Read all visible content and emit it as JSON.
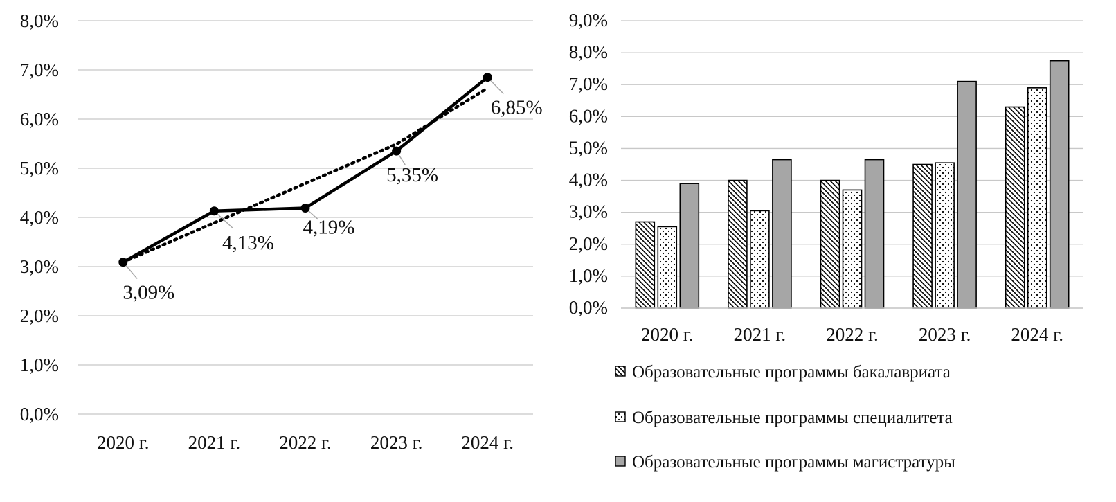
{
  "chart_data": [
    {
      "type": "line",
      "categories": [
        "2020 г.",
        "2021 г.",
        "2022 г.",
        "2023 г.",
        "2024 г."
      ],
      "series": [
        {
          "values": [
            3.09,
            4.13,
            4.19,
            5.35,
            6.85
          ],
          "style": "solid-with-markers"
        },
        {
          "values": [
            3.09,
            3.89,
            4.69,
            5.49,
            6.63
          ],
          "style": "dotted-trendline"
        }
      ],
      "data_labels": [
        "3,09%",
        "4,13%",
        "4,19%",
        "5,35%",
        "6,85%"
      ],
      "y_ticks": [
        "0,0%",
        "1,0%",
        "2,0%",
        "3,0%",
        "4,0%",
        "5,0%",
        "6,0%",
        "7,0%",
        "8,0%"
      ],
      "ylim": [
        0,
        8
      ],
      "grid": true,
      "legend": "none"
    },
    {
      "type": "bar",
      "categories": [
        "2020 г.",
        "2021 г.",
        "2022 г.",
        "2023 г.",
        "2024 г."
      ],
      "series": [
        {
          "name": "Образовательные программы бакалавриата",
          "values": [
            2.7,
            4.0,
            4.0,
            4.5,
            6.3
          ],
          "pattern": "diagonal-hatch"
        },
        {
          "name": "Образовательные программы специалитета",
          "values": [
            2.55,
            3.05,
            3.7,
            4.55,
            6.9
          ],
          "pattern": "dots"
        },
        {
          "name": "Образовательные программы магистратуры",
          "values": [
            3.9,
            4.65,
            4.65,
            7.1,
            7.75
          ],
          "pattern": "solid-gray"
        }
      ],
      "y_ticks": [
        "0,0%",
        "1,0%",
        "2,0%",
        "3,0%",
        "4,0%",
        "5,0%",
        "6,0%",
        "7,0%",
        "8,0%",
        "9,0%"
      ],
      "ylim": [
        0,
        9
      ],
      "grid": true,
      "legend": "bottom"
    }
  ],
  "colors": {
    "line": "#000000",
    "grid": "#c8c8c8",
    "bar_outline": "#000000",
    "gray_bar": "#a6a6a6",
    "leader": "#a6a6a6"
  }
}
